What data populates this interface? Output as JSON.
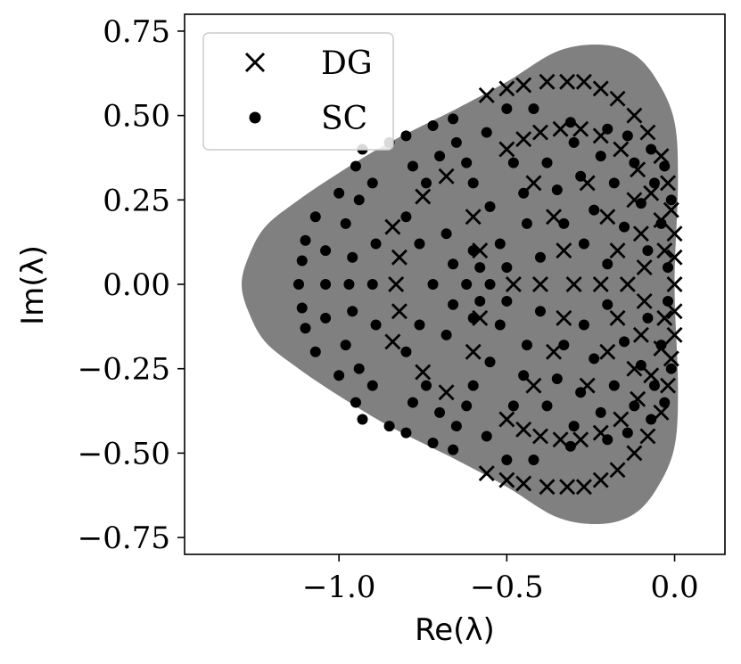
{
  "chart_data": {
    "type": "scatter",
    "xlabel": "Re(λ)",
    "ylabel": "Im(λ)",
    "xlim": [
      -1.46,
      0.15
    ],
    "ylim": [
      -0.8,
      0.8
    ],
    "x_ticks": [
      -1.0,
      -0.5,
      0.0
    ],
    "x_tick_labels": [
      "−1.0",
      "−0.5",
      "0.0"
    ],
    "y_ticks": [
      0.75,
      0.5,
      0.25,
      0.0,
      -0.25,
      -0.5,
      -0.75
    ],
    "y_tick_labels": [
      "0.75",
      "0.50",
      "0.25",
      "0.00",
      "−0.25",
      "−0.50",
      "−0.75"
    ],
    "grid": false,
    "legend_position": "top-left",
    "stability_region": {
      "color": "#808080",
      "boundary": [
        [
          0.0,
          0.0
        ],
        [
          0.01,
          0.3
        ],
        [
          0.0,
          0.48
        ],
        [
          -0.05,
          0.6
        ],
        [
          -0.12,
          0.68
        ],
        [
          -0.22,
          0.71
        ],
        [
          -0.35,
          0.69
        ],
        [
          -0.5,
          0.6
        ],
        [
          -0.65,
          0.52
        ],
        [
          -0.85,
          0.42
        ],
        [
          -1.0,
          0.33
        ],
        [
          -1.12,
          0.25
        ],
        [
          -1.22,
          0.17
        ],
        [
          -1.27,
          0.08
        ],
        [
          -1.29,
          0.0
        ],
        [
          -1.27,
          -0.08
        ],
        [
          -1.22,
          -0.17
        ],
        [
          -1.12,
          -0.25
        ],
        [
          -1.0,
          -0.33
        ],
        [
          -0.85,
          -0.42
        ],
        [
          -0.65,
          -0.52
        ],
        [
          -0.5,
          -0.6
        ],
        [
          -0.35,
          -0.69
        ],
        [
          -0.22,
          -0.71
        ],
        [
          -0.12,
          -0.68
        ],
        [
          -0.05,
          -0.6
        ],
        [
          0.0,
          -0.48
        ],
        [
          0.01,
          -0.3
        ]
      ]
    },
    "series": [
      {
        "name": "DG",
        "marker": "x",
        "color": "#000000",
        "points": [
          [
            -0.56,
            0.56
          ],
          [
            -0.5,
            0.58
          ],
          [
            -0.45,
            0.59
          ],
          [
            -0.38,
            0.6
          ],
          [
            -0.32,
            0.6
          ],
          [
            -0.27,
            0.6
          ],
          [
            -0.22,
            0.58
          ],
          [
            -0.17,
            0.55
          ],
          [
            -0.12,
            0.5
          ],
          [
            -0.08,
            0.45
          ],
          [
            -0.04,
            0.38
          ],
          [
            -0.02,
            0.3
          ],
          [
            -0.01,
            0.22
          ],
          [
            0.0,
            0.15
          ],
          [
            0.0,
            0.08
          ],
          [
            0.0,
            0.0
          ],
          [
            -0.56,
            -0.56
          ],
          [
            -0.5,
            -0.58
          ],
          [
            -0.45,
            -0.59
          ],
          [
            -0.38,
            -0.6
          ],
          [
            -0.32,
            -0.6
          ],
          [
            -0.27,
            -0.6
          ],
          [
            -0.22,
            -0.58
          ],
          [
            -0.17,
            -0.55
          ],
          [
            -0.12,
            -0.5
          ],
          [
            -0.08,
            -0.45
          ],
          [
            -0.04,
            -0.38
          ],
          [
            -0.02,
            -0.3
          ],
          [
            -0.01,
            -0.22
          ],
          [
            0.0,
            -0.15
          ],
          [
            0.0,
            -0.08
          ],
          [
            -0.5,
            0.4
          ],
          [
            -0.45,
            0.43
          ],
          [
            -0.4,
            0.45
          ],
          [
            -0.34,
            0.46
          ],
          [
            -0.28,
            0.46
          ],
          [
            -0.22,
            0.44
          ],
          [
            -0.16,
            0.4
          ],
          [
            -0.11,
            0.34
          ],
          [
            -0.07,
            0.27
          ],
          [
            -0.04,
            0.19
          ],
          [
            -0.03,
            0.1
          ],
          [
            -0.5,
            -0.4
          ],
          [
            -0.45,
            -0.43
          ],
          [
            -0.4,
            -0.45
          ],
          [
            -0.34,
            -0.46
          ],
          [
            -0.28,
            -0.46
          ],
          [
            -0.22,
            -0.44
          ],
          [
            -0.16,
            -0.4
          ],
          [
            -0.11,
            -0.34
          ],
          [
            -0.07,
            -0.27
          ],
          [
            -0.04,
            -0.19
          ],
          [
            -0.03,
            -0.1
          ],
          [
            -0.84,
            0.17
          ],
          [
            -0.82,
            0.08
          ],
          [
            -0.83,
            0.0
          ],
          [
            -0.82,
            -0.08
          ],
          [
            -0.84,
            -0.17
          ],
          [
            -0.75,
            0.26
          ],
          [
            -0.75,
            -0.26
          ],
          [
            -0.68,
            0.32
          ],
          [
            -0.68,
            -0.32
          ],
          [
            -0.6,
            0.2
          ],
          [
            -0.6,
            -0.2
          ],
          [
            -0.58,
            0.1
          ],
          [
            -0.58,
            -0.1
          ],
          [
            -0.42,
            0.3
          ],
          [
            -0.42,
            -0.3
          ],
          [
            -0.36,
            0.2
          ],
          [
            -0.36,
            -0.2
          ],
          [
            -0.33,
            0.1
          ],
          [
            -0.33,
            -0.1
          ],
          [
            -0.26,
            0.3
          ],
          [
            -0.26,
            -0.3
          ],
          [
            -0.2,
            0.2
          ],
          [
            -0.2,
            -0.2
          ],
          [
            -0.17,
            0.1
          ],
          [
            -0.17,
            -0.1
          ],
          [
            -0.12,
            0.25
          ],
          [
            -0.12,
            -0.25
          ],
          [
            -0.1,
            0.15
          ],
          [
            -0.1,
            -0.15
          ],
          [
            -0.09,
            0.05
          ],
          [
            -0.09,
            -0.05
          ],
          [
            -0.4,
            0.0
          ],
          [
            -0.48,
            0.0
          ],
          [
            -0.3,
            0.0
          ],
          [
            -0.22,
            0.0
          ],
          [
            -0.14,
            0.0
          ]
        ]
      },
      {
        "name": "SC",
        "marker": "o",
        "color": "#000000",
        "points": [
          [
            -1.1,
            0.13
          ],
          [
            -1.11,
            0.07
          ],
          [
            -1.12,
            0.0
          ],
          [
            -1.11,
            -0.07
          ],
          [
            -1.1,
            -0.13
          ],
          [
            -1.07,
            0.2
          ],
          [
            -1.07,
            -0.2
          ],
          [
            -1.0,
            0.27
          ],
          [
            -1.0,
            -0.27
          ],
          [
            -0.95,
            0.35
          ],
          [
            -0.95,
            -0.35
          ],
          [
            -0.93,
            0.4
          ],
          [
            -0.93,
            -0.4
          ],
          [
            -0.85,
            0.42
          ],
          [
            -0.85,
            -0.42
          ],
          [
            -0.8,
            0.44
          ],
          [
            -0.8,
            -0.44
          ],
          [
            -0.72,
            0.47
          ],
          [
            -0.72,
            -0.47
          ],
          [
            -0.66,
            0.49
          ],
          [
            -0.66,
            -0.49
          ],
          [
            -1.04,
            0.1
          ],
          [
            -1.04,
            0.0
          ],
          [
            -1.04,
            -0.1
          ],
          [
            -0.98,
            0.18
          ],
          [
            -0.98,
            -0.18
          ],
          [
            -0.94,
            0.25
          ],
          [
            -0.94,
            -0.25
          ],
          [
            -0.9,
            0.3
          ],
          [
            -0.9,
            -0.3
          ],
          [
            -0.97,
            0.0
          ],
          [
            -0.96,
            0.08
          ],
          [
            -0.96,
            -0.08
          ],
          [
            -0.9,
            0.0
          ],
          [
            -0.89,
            0.12
          ],
          [
            -0.89,
            -0.12
          ],
          [
            -0.78,
            0.35
          ],
          [
            -0.78,
            -0.35
          ],
          [
            -0.74,
            0.3
          ],
          [
            -0.74,
            -0.3
          ],
          [
            -0.7,
            0.38
          ],
          [
            -0.7,
            -0.38
          ],
          [
            -0.65,
            0.42
          ],
          [
            -0.65,
            -0.42
          ],
          [
            -0.62,
            0.36
          ],
          [
            -0.62,
            -0.36
          ],
          [
            -0.8,
            0.2
          ],
          [
            -0.8,
            -0.2
          ],
          [
            -0.76,
            0.12
          ],
          [
            -0.76,
            -0.12
          ],
          [
            -0.72,
            0.0
          ],
          [
            -0.68,
            0.15
          ],
          [
            -0.68,
            -0.15
          ],
          [
            -0.66,
            0.06
          ],
          [
            -0.66,
            -0.06
          ],
          [
            -0.6,
            0.3
          ],
          [
            -0.6,
            -0.3
          ],
          [
            -0.56,
            0.45
          ],
          [
            -0.56,
            -0.45
          ],
          [
            -0.55,
            0.23
          ],
          [
            -0.55,
            -0.23
          ],
          [
            -0.52,
            0.12
          ],
          [
            -0.52,
            -0.12
          ],
          [
            -0.5,
            0.05
          ],
          [
            -0.5,
            -0.05
          ],
          [
            -0.55,
            0.0
          ],
          [
            -0.48,
            0.36
          ],
          [
            -0.48,
            -0.36
          ],
          [
            -0.45,
            0.27
          ],
          [
            -0.45,
            -0.27
          ],
          [
            -0.44,
            0.18
          ],
          [
            -0.44,
            -0.18
          ],
          [
            -0.4,
            0.08
          ],
          [
            -0.4,
            -0.08
          ],
          [
            -0.38,
            0.36
          ],
          [
            -0.38,
            -0.36
          ],
          [
            -0.35,
            0.28
          ],
          [
            -0.35,
            -0.28
          ],
          [
            -0.33,
            0.18
          ],
          [
            -0.33,
            -0.18
          ],
          [
            -0.3,
            0.42
          ],
          [
            -0.3,
            -0.42
          ],
          [
            -0.28,
            0.32
          ],
          [
            -0.28,
            -0.32
          ],
          [
            -0.27,
            0.12
          ],
          [
            -0.27,
            -0.12
          ],
          [
            -0.24,
            0.22
          ],
          [
            -0.24,
            -0.22
          ],
          [
            -0.22,
            0.38
          ],
          [
            -0.22,
            -0.38
          ],
          [
            -0.2,
            0.06
          ],
          [
            -0.2,
            -0.06
          ],
          [
            -0.18,
            0.3
          ],
          [
            -0.18,
            -0.3
          ],
          [
            -0.15,
            0.17
          ],
          [
            -0.15,
            -0.17
          ],
          [
            -0.12,
            0.36
          ],
          [
            -0.12,
            -0.36
          ],
          [
            -0.1,
            0.24
          ],
          [
            -0.1,
            -0.24
          ],
          [
            -0.08,
            0.1
          ],
          [
            -0.08,
            -0.1
          ],
          [
            -0.06,
            0.3
          ],
          [
            -0.06,
            -0.3
          ],
          [
            -0.04,
            0.18
          ],
          [
            -0.04,
            -0.18
          ],
          [
            -0.02,
            0.05
          ],
          [
            -0.02,
            -0.05
          ],
          [
            -0.31,
            0.48
          ],
          [
            -0.31,
            -0.48
          ],
          [
            -0.2,
            0.46
          ],
          [
            -0.2,
            -0.46
          ],
          [
            -0.14,
            0.44
          ],
          [
            -0.14,
            -0.44
          ],
          [
            -0.07,
            0.4
          ],
          [
            -0.07,
            -0.4
          ],
          [
            -0.03,
            0.35
          ],
          [
            -0.03,
            -0.35
          ],
          [
            -0.01,
            0.25
          ],
          [
            -0.01,
            -0.25
          ],
          [
            -0.6,
            0.1
          ],
          [
            -0.6,
            -0.1
          ],
          [
            -0.62,
            0.0
          ],
          [
            -0.58,
            0.05
          ],
          [
            -0.58,
            -0.05
          ],
          [
            -0.42,
            0.52
          ],
          [
            -0.42,
            -0.52
          ],
          [
            -0.5,
            0.52
          ],
          [
            -0.5,
            -0.52
          ]
        ]
      }
    ]
  },
  "legend": {
    "entries": [
      {
        "label": "DG",
        "marker": "x"
      },
      {
        "label": "SC",
        "marker": "o"
      }
    ]
  }
}
